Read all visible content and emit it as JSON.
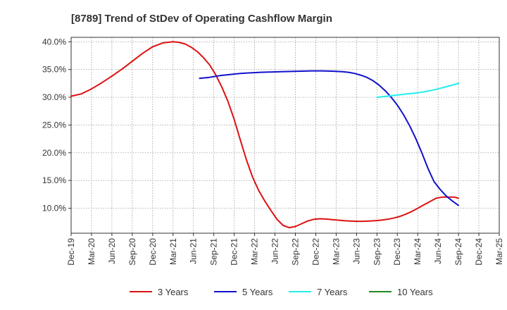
{
  "chart_data": {
    "type": "line",
    "title": "[8789]  Trend of StDev of Operating Cashflow Margin",
    "xlabel": "",
    "ylabel": "",
    "x_ticks": [
      "Dec-19",
      "Mar-20",
      "Jun-20",
      "Sep-20",
      "Dec-20",
      "Mar-21",
      "Jun-21",
      "Sep-21",
      "Dec-21",
      "Mar-22",
      "Jun-22",
      "Sep-22",
      "Dec-22",
      "Mar-23",
      "Jun-23",
      "Sep-23",
      "Dec-23",
      "Mar-24",
      "Jun-24",
      "Sep-24",
      "Dec-24",
      "Mar-25"
    ],
    "y_ticks": [
      "10.0%",
      "15.0%",
      "20.0%",
      "25.0%",
      "30.0%",
      "35.0%",
      "40.0%"
    ],
    "y_tick_values": [
      10,
      15,
      20,
      25,
      30,
      35,
      40
    ],
    "ylim": [
      5.5,
      40.8
    ],
    "grid": true,
    "legend_position": "bottom",
    "series": [
      {
        "name": "3 Years",
        "color": "#dd1111",
        "x": [
          0,
          0.5,
          1,
          1.5,
          2,
          2.5,
          3,
          3.5,
          4,
          4.5,
          5,
          5.3,
          5.6,
          5.9,
          6.2,
          6.5,
          6.8,
          7.1,
          7.4,
          7.7,
          8,
          8.3,
          8.6,
          8.9,
          9.2,
          9.5,
          9.8,
          10.1,
          10.4,
          10.7,
          11,
          11.3,
          11.6,
          11.9,
          12.2,
          12.5,
          12.8,
          13.1,
          13.4,
          13.7,
          14,
          14.3,
          14.6,
          14.9,
          15.2,
          15.5,
          15.8,
          16.1,
          16.4,
          16.7,
          17,
          17.3,
          17.6,
          17.9,
          18.2,
          18.5,
          18.8,
          19
        ],
        "values": [
          30.2,
          30.6,
          31.5,
          32.6,
          33.8,
          35.1,
          36.5,
          37.9,
          39.1,
          39.8,
          40.0,
          39.9,
          39.6,
          39.0,
          38.2,
          37.1,
          35.8,
          34.0,
          31.8,
          29.2,
          26.0,
          22.3,
          18.7,
          15.6,
          13.2,
          11.3,
          9.6,
          8.0,
          6.9,
          6.5,
          6.7,
          7.2,
          7.7,
          8.0,
          8.1,
          8.05,
          7.95,
          7.85,
          7.75,
          7.7,
          7.65,
          7.65,
          7.7,
          7.75,
          7.85,
          8.0,
          8.2,
          8.5,
          8.9,
          9.4,
          10.0,
          10.6,
          11.2,
          11.8,
          12.0,
          12.0,
          12.0,
          11.8
        ]
      },
      {
        "name": "5 Years",
        "color": "#1111cc",
        "x": [
          6.3,
          6.8,
          7.3,
          7.8,
          8.3,
          8.8,
          9.3,
          9.8,
          10.3,
          10.8,
          11.3,
          11.8,
          12.3,
          12.8,
          13.3,
          13.6,
          13.9,
          14.2,
          14.5,
          14.8,
          15.1,
          15.4,
          15.7,
          16,
          16.3,
          16.6,
          16.9,
          17.2,
          17.5,
          17.8,
          18.1,
          18.4,
          18.7,
          19
        ],
        "values": [
          33.4,
          33.6,
          33.9,
          34.1,
          34.3,
          34.4,
          34.5,
          34.55,
          34.6,
          34.65,
          34.7,
          34.75,
          34.75,
          34.7,
          34.6,
          34.5,
          34.3,
          34.0,
          33.6,
          33.0,
          32.2,
          31.2,
          30.0,
          28.6,
          26.9,
          24.9,
          22.6,
          20.0,
          17.2,
          14.8,
          13.4,
          12.2,
          11.3,
          10.5
        ]
      },
      {
        "name": "7 Years",
        "color": "#22eeee",
        "x": [
          15,
          15.5,
          16,
          16.5,
          17,
          17.5,
          18,
          18.5,
          19
        ],
        "values": [
          30.0,
          30.2,
          30.4,
          30.6,
          30.8,
          31.1,
          31.5,
          32.0,
          32.5
        ]
      },
      {
        "name": "10 Years",
        "color": "#228822",
        "x": [],
        "values": []
      }
    ]
  }
}
